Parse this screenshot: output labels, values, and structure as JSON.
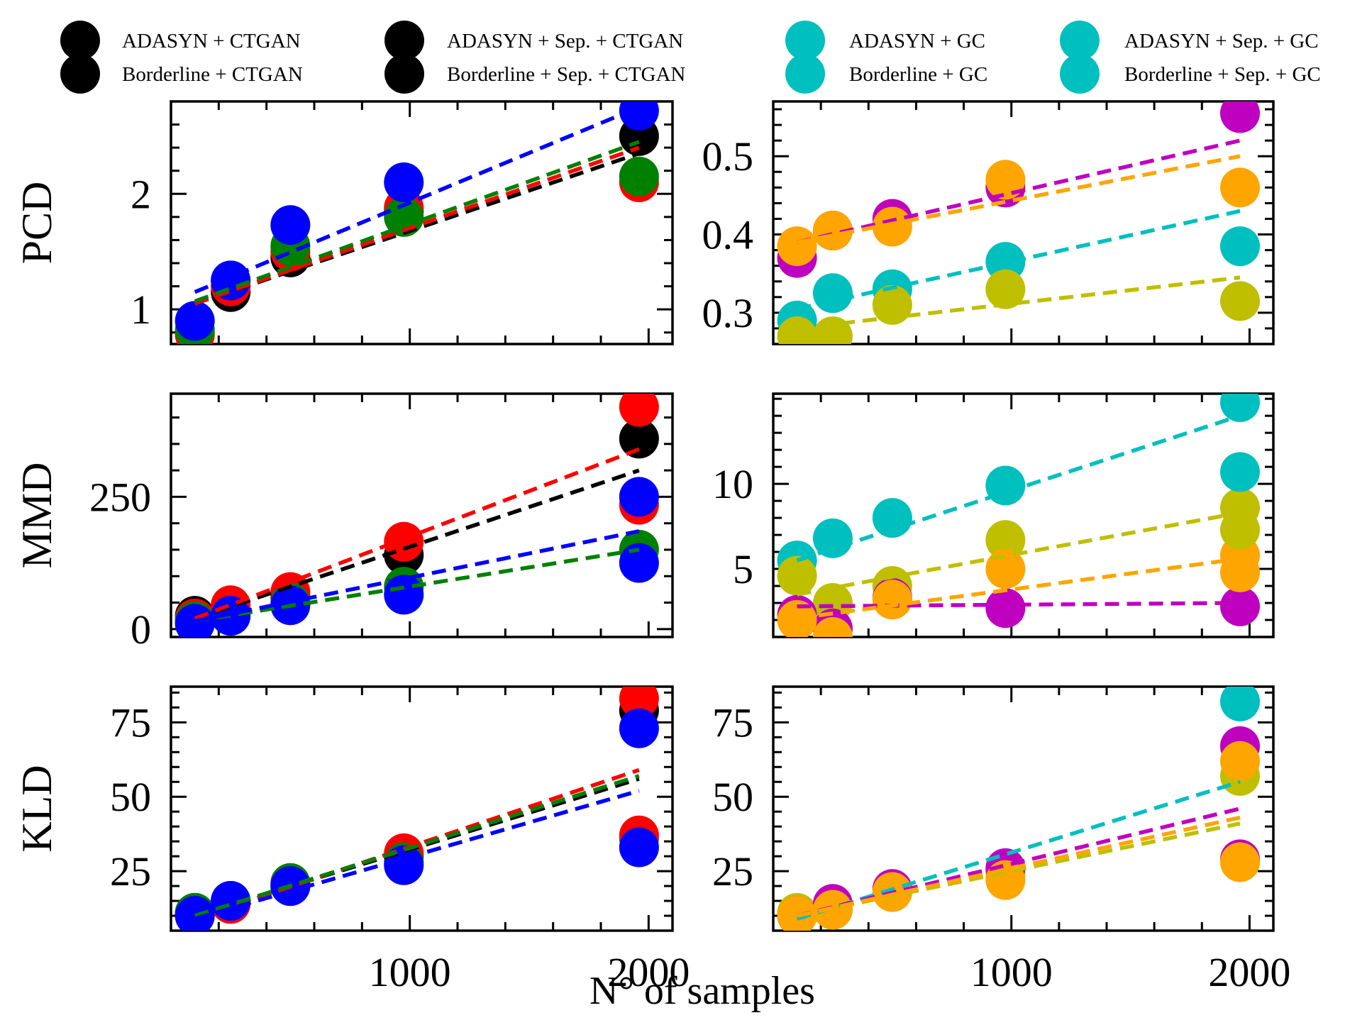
{
  "legend": {
    "entries": [
      {
        "label": "ADASYN + CTGAN",
        "color": "#000000"
      },
      {
        "label": "Borderline + CTGAN",
        "color": "#000000"
      },
      {
        "label": "ADASYN + Sep. + CTGAN",
        "color": "#000000"
      },
      {
        "label": "Borderline + Sep. + CTGAN",
        "color": "#000000"
      },
      {
        "label": "ADASYN + GC",
        "color": "#00bfbf"
      },
      {
        "label": "Borderline + GC",
        "color": "#00bfbf"
      },
      {
        "label": "ADASYN + Sep. + GC",
        "color": "#00bfbf"
      },
      {
        "label": "Borderline + Sep. + GC",
        "color": "#00bfbf"
      }
    ]
  },
  "xlabel": "N° of samples",
  "colors": {
    "black": "#000000",
    "red": "#ff0000",
    "green": "#008000",
    "blue": "#0000ff",
    "cyan": "#00bfbf",
    "olive": "#bfbf00",
    "magenta": "#bf00bf",
    "orange": "#ffa500"
  },
  "chart_data": [
    {
      "type": "scatter",
      "id": "pcd-ctgan",
      "ylabel": "PCD",
      "xlim": [
        0,
        2100
      ],
      "ylim": [
        0.7,
        2.8
      ],
      "xticks": [
        1000,
        2000
      ],
      "yticks": [
        1,
        2
      ],
      "ytick_labels": [
        "1",
        "2"
      ],
      "series": [
        {
          "color": "#000000",
          "x": [
            100,
            250,
            500,
            1000,
            2000
          ],
          "y": [
            0.8,
            1.15,
            1.45,
            1.85,
            2.5
          ],
          "fit": [
            1.05,
            2.35
          ]
        },
        {
          "color": "#ff0000",
          "x": [
            100,
            250,
            500,
            1000,
            2000
          ],
          "y": [
            0.78,
            1.2,
            1.5,
            1.88,
            2.1
          ],
          "fit": [
            1.05,
            2.4
          ]
        },
        {
          "color": "#008000",
          "x": [
            100,
            250,
            500,
            1000,
            2000
          ],
          "y": [
            0.82,
            1.25,
            1.55,
            1.8,
            2.15
          ],
          "fit": [
            1.07,
            2.45
          ]
        },
        {
          "color": "#0000ff",
          "x": [
            100,
            250,
            500,
            1000,
            2000
          ],
          "y": [
            0.9,
            1.25,
            1.73,
            2.1,
            2.72
          ],
          "fit": [
            1.15,
            2.75
          ]
        }
      ]
    },
    {
      "type": "scatter",
      "id": "pcd-gc",
      "ylabel": "",
      "xlim": [
        0,
        2100
      ],
      "ylim": [
        0.26,
        0.57
      ],
      "xticks": [
        1000,
        2000
      ],
      "yticks": [
        0.3,
        0.4,
        0.5
      ],
      "ytick_labels": [
        "0.3",
        "0.4",
        "0.5"
      ],
      "series": [
        {
          "color": "#00bfbf",
          "x": [
            100,
            250,
            500,
            1000,
            2000
          ],
          "y": [
            0.29,
            0.325,
            0.33,
            0.365,
            0.385
          ],
          "fit": [
            0.305,
            0.43
          ]
        },
        {
          "color": "#bfbf00",
          "x": [
            100,
            250,
            500,
            1000,
            2000
          ],
          "y": [
            0.27,
            0.27,
            0.31,
            0.33,
            0.315
          ],
          "fit": [
            0.28,
            0.345
          ]
        },
        {
          "color": "#bf00bf",
          "x": [
            100,
            250,
            500,
            1000,
            2000
          ],
          "y": [
            0.37,
            0.405,
            0.42,
            0.46,
            0.555
          ],
          "fit": [
            0.39,
            0.52
          ]
        },
        {
          "color": "#ffa500",
          "x": [
            100,
            250,
            500,
            1000,
            2000
          ],
          "y": [
            0.385,
            0.405,
            0.41,
            0.47,
            0.46
          ],
          "fit": [
            0.39,
            0.5
          ]
        }
      ]
    },
    {
      "type": "scatter",
      "id": "mmd-ctgan",
      "ylabel": "MMD",
      "xlim": [
        0,
        2100
      ],
      "ylim": [
        -15,
        445
      ],
      "xticks": [
        1000,
        2000
      ],
      "yticks": [
        0,
        250
      ],
      "ytick_labels": [
        "0",
        "250"
      ],
      "series": [
        {
          "color": "#000000",
          "x": [
            100,
            250,
            500,
            1000,
            2000
          ],
          "y": [
            25,
            35,
            60,
            140,
            360
          ],
          "fit": [
            20,
            300
          ]
        },
        {
          "color": "#ff0000",
          "x": [
            100,
            250,
            500,
            1000,
            2000
          ],
          "y": [
            20,
            45,
            70,
            165,
            420
          ],
          "fit": [
            20,
            340
          ]
        },
        {
          "color": "#008000",
          "x": [
            100,
            250,
            500,
            1000,
            2000
          ],
          "y": [
            15,
            25,
            50,
            80,
            150
          ],
          "fit": [
            15,
            150
          ]
        },
        {
          "color": "#0000ff",
          "x": [
            100,
            250,
            500,
            1000,
            2000
          ],
          "y": [
            10,
            25,
            45,
            65,
            125
          ],
          "fit": [
            15,
            185
          ]
        }
      ],
      "extra_points": [
        {
          "color": "#ff0000",
          "x": 2000,
          "y": 235
        },
        {
          "color": "#0000ff",
          "x": 2000,
          "y": 250
        }
      ]
    },
    {
      "type": "scatter",
      "id": "mmd-gc",
      "ylabel": "",
      "xlim": [
        0,
        2100
      ],
      "ylim": [
        1.0,
        15.3
      ],
      "xticks": [
        1000,
        2000
      ],
      "yticks": [
        5,
        10
      ],
      "ytick_labels": [
        "5",
        "10"
      ],
      "series": [
        {
          "color": "#00bfbf",
          "x": [
            100,
            250,
            500,
            1000,
            2000
          ],
          "y": [
            5.5,
            6.8,
            8.0,
            9.9,
            14.8
          ],
          "fit": [
            5.5,
            14.0
          ]
        },
        {
          "color": "#bfbf00",
          "x": [
            100,
            250,
            500,
            1000,
            2000
          ],
          "y": [
            4.6,
            3.0,
            4.0,
            6.7,
            8.6
          ],
          "fit": [
            3.5,
            8.3
          ]
        },
        {
          "color": "#bf00bf",
          "x": [
            100,
            250,
            500,
            1000,
            2000
          ],
          "y": [
            2.3,
            1.5,
            3.3,
            2.7,
            2.8
          ],
          "fit": [
            2.8,
            3.0
          ]
        },
        {
          "color": "#ffa500",
          "x": [
            100,
            250,
            500,
            1000,
            2000
          ],
          "y": [
            2.0,
            1.0,
            3.2,
            5.0,
            5.8
          ],
          "fit": [
            2.1,
            5.6
          ]
        }
      ],
      "extra_points": [
        {
          "color": "#00bfbf",
          "x": 2000,
          "y": 10.7
        },
        {
          "color": "#bfbf00",
          "x": 2000,
          "y": 7.3
        },
        {
          "color": "#ffa500",
          "x": 2000,
          "y": 4.8
        }
      ]
    },
    {
      "type": "scatter",
      "id": "kld-ctgan",
      "ylabel": "KLD",
      "xlim": [
        0,
        2100
      ],
      "ylim": [
        5,
        87
      ],
      "xticks": [
        1000,
        2000
      ],
      "yticks": [
        25,
        50,
        75
      ],
      "ytick_labels": [
        "25",
        "50",
        "75"
      ],
      "series": [
        {
          "color": "#000000",
          "x": [
            100,
            250,
            500,
            1000,
            2000
          ],
          "y": [
            11,
            15,
            20,
            30,
            79
          ],
          "fit": [
            10,
            56
          ]
        },
        {
          "color": "#ff0000",
          "x": [
            100,
            250,
            500,
            1000,
            2000
          ],
          "y": [
            10,
            14,
            21,
            31,
            83
          ],
          "fit": [
            9,
            59
          ]
        },
        {
          "color": "#008000",
          "x": [
            100,
            250,
            500,
            1000,
            2000
          ],
          "y": [
            11,
            15,
            21,
            28,
            36
          ],
          "fit": [
            10,
            57
          ]
        },
        {
          "color": "#0000ff",
          "x": [
            100,
            250,
            500,
            1000,
            2000
          ],
          "y": [
            10,
            15,
            20,
            27,
            73
          ],
          "fit": [
            9,
            52
          ]
        }
      ],
      "extra_points": [
        {
          "color": "#ff0000",
          "x": 2000,
          "y": 37
        },
        {
          "color": "#0000ff",
          "x": 2000,
          "y": 33
        }
      ]
    },
    {
      "type": "scatter",
      "id": "kld-gc",
      "ylabel": "",
      "xlim": [
        0,
        2100
      ],
      "ylim": [
        5,
        87
      ],
      "xticks": [
        1000,
        2000
      ],
      "yticks": [
        25,
        50,
        75
      ],
      "ytick_labels": [
        "25",
        "50",
        "75"
      ],
      "series": [
        {
          "color": "#00bfbf",
          "x": [
            100,
            250,
            500,
            1000,
            2000
          ],
          "y": [
            10,
            12,
            19,
            25,
            82
          ],
          "fit": [
            9,
            55
          ]
        },
        {
          "color": "#bfbf00",
          "x": [
            100,
            250,
            500,
            1000,
            2000
          ],
          "y": [
            11,
            13,
            18,
            24,
            57
          ],
          "fit": [
            10,
            41
          ]
        },
        {
          "color": "#bf00bf",
          "x": [
            100,
            250,
            500,
            1000,
            2000
          ],
          "y": [
            10,
            14,
            19,
            26,
            67
          ],
          "fit": [
            10,
            46
          ]
        },
        {
          "color": "#ffa500",
          "x": [
            100,
            250,
            500,
            1000,
            2000
          ],
          "y": [
            10,
            12,
            18,
            22,
            62
          ],
          "fit": [
            10,
            43
          ]
        }
      ],
      "extra_points": [
        {
          "color": "#bf00bf",
          "x": 2000,
          "y": 29
        },
        {
          "color": "#ffa500",
          "x": 2000,
          "y": 28
        }
      ]
    }
  ]
}
